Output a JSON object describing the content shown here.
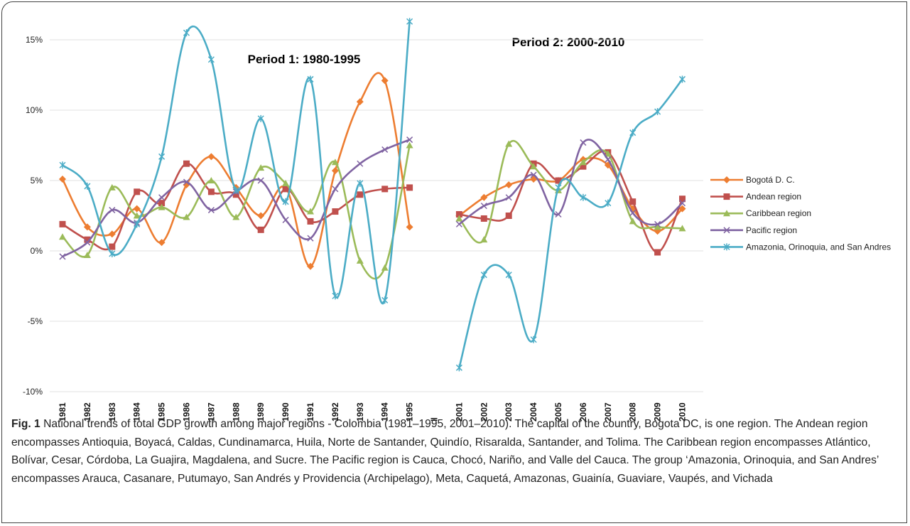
{
  "chart_data": {
    "type": "line",
    "annotations": [
      "Period 1: 1980-1995",
      "Period 2: 2000-2010"
    ],
    "categories": [
      "1981",
      "1982",
      "1983",
      "1984",
      "1985",
      "1986",
      "1987",
      "1988",
      "1989",
      "1990",
      "1991",
      "1992",
      "1993",
      "1994",
      "1995",
      "‖",
      "2001",
      "2002",
      "2003",
      "2004",
      "2005",
      "2006",
      "2007",
      "2008",
      "2009",
      "2010"
    ],
    "series": [
      {
        "name": "Bogotá D. C.",
        "color": "#ed7d31",
        "marker": "diamond",
        "values": [
          5.1,
          1.7,
          1.2,
          3.0,
          0.6,
          4.7,
          6.7,
          4.5,
          2.5,
          4.5,
          -1.1,
          5.7,
          10.6,
          12.1,
          1.7,
          null,
          2.5,
          3.8,
          4.7,
          5.1,
          5.0,
          6.5,
          6.1,
          3.0,
          1.4,
          3.0
        ]
      },
      {
        "name": "Andean region",
        "color": "#c0504d",
        "marker": "square",
        "values": [
          1.9,
          0.8,
          0.3,
          4.2,
          3.4,
          6.2,
          4.2,
          4.0,
          1.5,
          4.4,
          2.1,
          2.8,
          4.0,
          4.4,
          4.5,
          null,
          2.6,
          2.3,
          2.5,
          6.2,
          5.0,
          6.0,
          7.0,
          3.5,
          -0.1,
          3.7
        ]
      },
      {
        "name": "Caribbean region",
        "color": "#9bbb59",
        "marker": "triangle",
        "values": [
          1.0,
          -0.3,
          4.5,
          2.5,
          3.1,
          2.4,
          5.0,
          2.4,
          5.9,
          4.8,
          2.8,
          6.3,
          -0.7,
          -1.2,
          7.5,
          null,
          2.3,
          0.8,
          7.6,
          6.0,
          4.3,
          6.3,
          6.9,
          2.1,
          1.7,
          1.6
        ]
      },
      {
        "name": "Pacific region",
        "color": "#8064a2",
        "marker": "x",
        "values": [
          -0.4,
          0.6,
          2.9,
          2.0,
          3.8,
          4.9,
          2.9,
          4.2,
          5.0,
          2.2,
          0.9,
          4.4,
          6.2,
          7.2,
          7.9,
          null,
          1.9,
          3.2,
          3.8,
          5.4,
          2.6,
          7.7,
          6.5,
          2.7,
          1.9,
          3.4
        ]
      },
      {
        "name": "Amazonia, Orinoquia, and San Andres",
        "color": "#4bacc6",
        "marker": "star",
        "values": [
          6.1,
          4.6,
          -0.2,
          1.9,
          6.7,
          15.5,
          13.6,
          4.3,
          9.4,
          3.5,
          12.2,
          -3.2,
          4.8,
          -3.5,
          16.3,
          null,
          -8.3,
          -1.7,
          -1.7,
          -6.3,
          4.5,
          3.8,
          3.4,
          8.4,
          9.9,
          12.2
        ]
      }
    ],
    "ylim": [
      -10,
      17
    ],
    "yticks": [
      {
        "value": -10,
        "label": "-10%"
      },
      {
        "value": -5,
        "label": "-5%"
      },
      {
        "value": 0,
        "label": "0%"
      },
      {
        "value": 5,
        "label": "5%"
      },
      {
        "value": 10,
        "label": "10%"
      },
      {
        "value": 15,
        "label": "15%"
      }
    ],
    "grid": true,
    "legend": "right"
  },
  "caption_label": "Fig. 1",
  "caption": "National trends of total GDP growth among major regions - Colombia (1981–1995, 2001–2010). The capital of the country, Bogota DC, is one region. The Andean region encompasses Antioquia, Boyacá, Caldas, Cundinamarca, Huila, Norte de Santander, Quindío, Risaralda, Santander, and Tolima. The Caribbean region encompasses Atlántico, Bolívar, Cesar, Córdoba, La Guajira, Magdalena, and Sucre. The Pacific region is Cauca, Chocó, Nariño, and Valle del Cauca. The group ‘Amazonia, Orinoquia, and San Andres’ encompasses Arauca, Casanare, Putumayo, San Andrés y Providencia (Archipelago), Meta, Caquetá, Amazonas, Guainía, Guaviare, Vaupés, and Vichada"
}
